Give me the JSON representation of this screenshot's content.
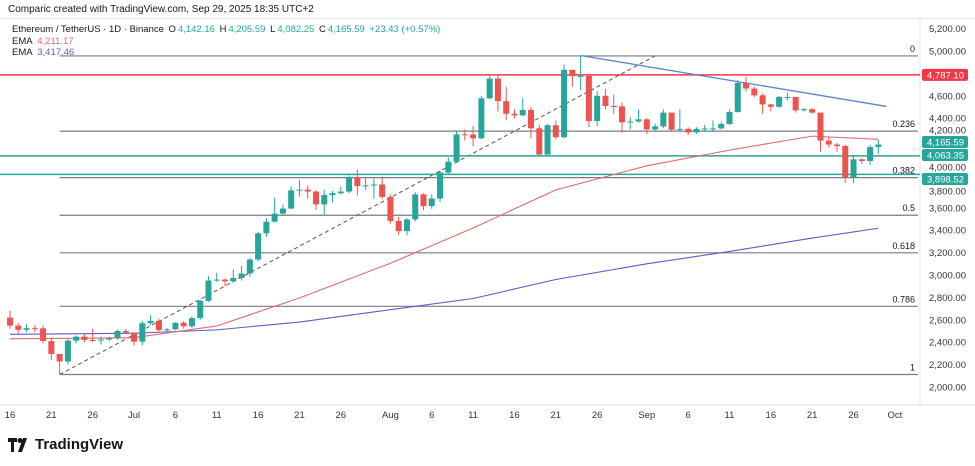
{
  "credit": "Comparic created with TradingView.com, Sep 29, 2025 18:35 UTC+2",
  "legend": {
    "symbol": "Ethereum / TetherUS · 1D · Binance",
    "o_label": "O",
    "o": "4,142.16",
    "h_label": "H",
    "h": "4,205.59",
    "l_label": "L",
    "l": "4,082.25",
    "c_label": "C",
    "c": "4,165.59",
    "change": "+23.43 (+0.57%)",
    "ema1_label": "EMA",
    "ema1": "4,211.17",
    "ema2_label": "EMA",
    "ema2": "3,417.46"
  },
  "logo": "TradingView",
  "colors": {
    "up": "#26a69a",
    "down": "#ef5350",
    "ema_fast": "#e06b6b",
    "ema_slow": "#5c5cc8",
    "trend": "#5b86c8",
    "resistance": "#f23645",
    "support": "#26a69a",
    "fib": "#787b86"
  },
  "chart_data": {
    "type": "candlestick",
    "title": "Ethereum / TetherUS · 1D · Binance",
    "start_date": "2025-06-16",
    "first_open": 2620,
    "close": [
      2548,
      2510,
      2525,
      2524,
      2410,
      2295,
      2228,
      2414,
      2450,
      2420,
      2415,
      2424,
      2437,
      2500,
      2486,
      2405,
      2570,
      2590,
      2507,
      2515,
      2573,
      2542,
      2615,
      2769,
      2951,
      2959,
      2943,
      2973,
      3013,
      3138,
      3372,
      3476,
      3548,
      3593,
      3756,
      3762,
      3745,
      3630,
      3714,
      3730,
      3745,
      3875,
      3794,
      3800,
      3808,
      3697,
      3482,
      3392,
      3496,
      3720,
      3615,
      3683,
      3915,
      4012,
      4256,
      4254,
      4221,
      4578,
      4754,
      4552,
      4440,
      4425,
      4474,
      4310,
      4075,
      4337,
      4230,
      4832,
      4776,
      4778,
      4375,
      4600,
      4509,
      4506,
      4363,
      4370,
      4390,
      4300,
      4327,
      4450,
      4297,
      4305,
      4273,
      4305,
      4308,
      4309,
      4348,
      4455,
      4715,
      4665,
      4604,
      4523,
      4502,
      4590,
      4590,
      4470,
      4480,
      4450,
      4200,
      4165,
      4152,
      3868,
      4033,
      4018,
      4142.16,
      4165.59
    ],
    "high": [
      2680,
      2570,
      2560,
      2550,
      2550,
      2440,
      2280,
      2430,
      2460,
      2480,
      2520,
      2450,
      2450,
      2510,
      2520,
      2490,
      2590,
      2640,
      2610,
      2525,
      2580,
      2590,
      2630,
      2780,
      2990,
      3020,
      2970,
      3050,
      3080,
      3150,
      3385,
      3510,
      3690,
      3630,
      3790,
      3850,
      3800,
      3760,
      3760,
      3750,
      3790,
      3890,
      3940,
      3870,
      3860,
      3880,
      3720,
      3520,
      3510,
      3740,
      3730,
      3720,
      3930,
      4050,
      4290,
      4300,
      4330,
      4600,
      4790,
      4780,
      4680,
      4480,
      4580,
      4500,
      4340,
      4350,
      4380,
      4880,
      4800,
      4956,
      4780,
      4640,
      4660,
      4610,
      4540,
      4410,
      4480,
      4400,
      4350,
      4480,
      4450,
      4480,
      4320,
      4320,
      4340,
      4380,
      4370,
      4480,
      4740,
      4770,
      4680,
      4620,
      4530,
      4600,
      4630,
      4590,
      4490,
      4490,
      4450,
      4230,
      4180,
      4160,
      4060,
      4040,
      4160,
      4205.59
    ],
    "low": [
      2520,
      2480,
      2490,
      2490,
      2390,
      2240,
      2112,
      2200,
      2390,
      2400,
      2400,
      2380,
      2410,
      2420,
      2480,
      2370,
      2370,
      2555,
      2490,
      2495,
      2505,
      2520,
      2530,
      2600,
      2760,
      2940,
      2900,
      2935,
      2950,
      2980,
      3120,
      3340,
      3470,
      3530,
      3590,
      3700,
      3680,
      3580,
      3540,
      3650,
      3720,
      3730,
      3710,
      3760,
      3680,
      3680,
      3460,
      3355,
      3355,
      3480,
      3580,
      3590,
      3650,
      3900,
      4000,
      4200,
      4150,
      4210,
      4570,
      4460,
      4380,
      4400,
      4420,
      4220,
      4070,
      4075,
      4210,
      4220,
      4680,
      4650,
      4320,
      4330,
      4480,
      4440,
      4270,
      4300,
      4360,
      4260,
      4290,
      4310,
      4280,
      4280,
      4250,
      4260,
      4280,
      4280,
      4300,
      4340,
      4450,
      4640,
      4590,
      4440,
      4460,
      4490,
      4560,
      4450,
      4460,
      4440,
      4100,
      4140,
      4100,
      3820,
      3820,
      3990,
      3980,
      4082.25
    ],
    "ema_fast": {
      "dates": [
        "2025-06-16",
        "2025-07-01",
        "2025-07-11",
        "2025-07-21",
        "2025-08-01",
        "2025-08-11",
        "2025-08-21",
        "2025-09-01",
        "2025-09-11",
        "2025-09-21",
        "2025-09-29"
      ],
      "values": [
        2430,
        2440,
        2545,
        2795,
        3105,
        3420,
        3760,
        3975,
        4115,
        4240,
        4211.17
      ]
    },
    "ema_slow": {
      "dates": [
        "2025-06-16",
        "2025-07-01",
        "2025-07-11",
        "2025-07-21",
        "2025-08-01",
        "2025-08-11",
        "2025-08-21",
        "2025-09-01",
        "2025-09-11",
        "2025-09-21",
        "2025-09-29"
      ],
      "values": [
        2470,
        2480,
        2510,
        2580,
        2690,
        2790,
        2960,
        3100,
        3210,
        3330,
        3417.46
      ]
    },
    "fib": {
      "start_date": "2025-06-22",
      "end_date": "2025-09-29",
      "low": 2111.5,
      "high": 4956,
      "levels": [
        {
          "label": "0",
          "ratio": 0
        },
        {
          "label": "0.236",
          "ratio": 0.236
        },
        {
          "label": "0.382",
          "ratio": 0.382
        },
        {
          "label": "0.5",
          "ratio": 0.5
        },
        {
          "label": "0.618",
          "ratio": 0.618
        },
        {
          "label": "0.786",
          "ratio": 0.786
        },
        {
          "label": "1",
          "ratio": 1
        }
      ],
      "diagonal": {
        "from_date": "2025-06-22",
        "from": 2111.5,
        "to_date": "2025-09-02",
        "to": 4956
      }
    },
    "trendline": {
      "from_date": "2025-08-24",
      "from": 4960,
      "to_date": "2025-09-30",
      "to": 4505
    },
    "hlines": [
      {
        "value": 4787.1,
        "label": "4,787.10",
        "kind": "resistance"
      },
      {
        "value": 4063.35,
        "label": "4,063.35",
        "kind": "support"
      },
      {
        "value": 3898.52,
        "label": "3,898.52",
        "kind": "support"
      }
    ],
    "last_price": {
      "value": 4165.59,
      "label": "4,165.59"
    },
    "ylim": [
      1880,
      5300
    ],
    "yticks": [
      {
        "v": 5200,
        "label": "5,200.00"
      },
      {
        "v": 5000,
        "label": "5,000.00"
      },
      {
        "v": 4600,
        "label": "4,600.00"
      },
      {
        "v": 4400,
        "label": "4,400.00"
      },
      {
        "v": 4200,
        "label": "4,200.00"
      },
      {
        "v": 4000,
        "label": "4,000.00"
      },
      {
        "v": 3800,
        "label": "3,800.00"
      },
      {
        "v": 3600,
        "label": "3,600.00"
      },
      {
        "v": 3400,
        "label": "3,400.00"
      },
      {
        "v": 3200,
        "label": "3,200.00"
      },
      {
        "v": 3000,
        "label": "3,000.00"
      },
      {
        "v": 2800,
        "label": "2,800.00"
      },
      {
        "v": 2600,
        "label": "2,600.00"
      },
      {
        "v": 2400,
        "label": "2,400.00"
      },
      {
        "v": 2200,
        "label": "2,200.00"
      },
      {
        "v": 2000,
        "label": "2,000.00"
      }
    ],
    "xticks": [
      {
        "date": "2025-06-16",
        "label": "16"
      },
      {
        "date": "2025-06-21",
        "label": "21"
      },
      {
        "date": "2025-06-26",
        "label": "26"
      },
      {
        "date": "2025-07-01",
        "label": "Jul"
      },
      {
        "date": "2025-07-06",
        "label": "6"
      },
      {
        "date": "2025-07-11",
        "label": "11"
      },
      {
        "date": "2025-07-16",
        "label": "16"
      },
      {
        "date": "2025-07-21",
        "label": "21"
      },
      {
        "date": "2025-07-26",
        "label": "26"
      },
      {
        "date": "2025-08-01",
        "label": "Aug"
      },
      {
        "date": "2025-08-06",
        "label": "6"
      },
      {
        "date": "2025-08-11",
        "label": "11"
      },
      {
        "date": "2025-08-16",
        "label": "16"
      },
      {
        "date": "2025-08-21",
        "label": "21"
      },
      {
        "date": "2025-08-26",
        "label": "26"
      },
      {
        "date": "2025-09-01",
        "label": "Sep"
      },
      {
        "date": "2025-09-06",
        "label": "6"
      },
      {
        "date": "2025-09-11",
        "label": "11"
      },
      {
        "date": "2025-09-16",
        "label": "16"
      },
      {
        "date": "2025-09-21",
        "label": "21"
      },
      {
        "date": "2025-09-26",
        "label": "26"
      },
      {
        "date": "2025-10-01",
        "label": "Oct"
      }
    ]
  }
}
